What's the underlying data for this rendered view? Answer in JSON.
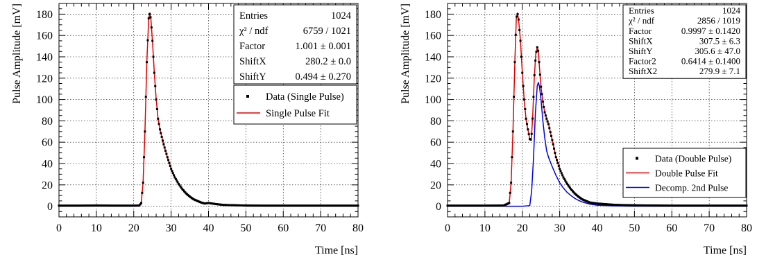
{
  "chart_data": [
    {
      "type": "line",
      "xlabel": "Time [ns]",
      "ylabel": "Pulse Amplitude [mV]",
      "xlim": [
        0,
        80
      ],
      "ylim": [
        -10,
        190
      ],
      "xticks": [
        0,
        10,
        20,
        30,
        40,
        50,
        60,
        70,
        80
      ],
      "yticks": [
        0,
        20,
        40,
        60,
        80,
        100,
        120,
        140,
        160,
        180
      ],
      "grid": true,
      "stats": [
        {
          "name": "Entries",
          "value": "1024"
        },
        {
          "name": "χ² / ndf",
          "value": "6759 / 1021"
        },
        {
          "name": "Factor",
          "value": "1.001 ± 0.001"
        },
        {
          "name": "ShiftX",
          "value": "280.2 ± 0.0"
        },
        {
          "name": "ShiftY",
          "value": "0.494 ± 0.270"
        }
      ],
      "legend": [
        {
          "label": "Data (Single Pulse)",
          "marker": "square",
          "color": "#000000"
        },
        {
          "label": "Single Pulse Fit",
          "marker": "line",
          "color": "#e00000"
        }
      ],
      "series": [
        {
          "name": "Single Pulse Fit",
          "color": "#e00000",
          "x": [
            0,
            5,
            10,
            15,
            20,
            21.5,
            22.0,
            22.5,
            23.0,
            23.5,
            24.0,
            24.3,
            24.6,
            25.0,
            25.5,
            26.0,
            26.5,
            27.0,
            28.0,
            29.0,
            30.0,
            31.0,
            32.0,
            33.0,
            34.0,
            35.0,
            36.0,
            37.0,
            38.0,
            39.0,
            40.0,
            41.0,
            42.0,
            44.0,
            46.0,
            50.0,
            55.0,
            60.0,
            70.0,
            80.0
          ],
          "y": [
            0.5,
            0.5,
            0.6,
            0.5,
            0.5,
            0.6,
            3,
            22,
            70,
            135,
            176,
            181,
            175,
            155,
            125,
            100,
            82,
            72,
            58,
            46,
            35,
            27,
            21,
            16,
            12,
            9,
            6.5,
            5,
            3.5,
            2.5,
            3,
            2.5,
            2,
            1.2,
            1,
            0.6,
            0.5,
            0.5,
            0.5,
            0.5
          ]
        }
      ]
    },
    {
      "type": "line",
      "xlabel": "Time [ns]",
      "ylabel": "Pulse Amplitude [mV]",
      "xlim": [
        0,
        80
      ],
      "ylim": [
        -10,
        190
      ],
      "xticks": [
        0,
        10,
        20,
        30,
        40,
        50,
        60,
        70,
        80
      ],
      "yticks": [
        0,
        20,
        40,
        60,
        80,
        100,
        120,
        140,
        160,
        180
      ],
      "grid": true,
      "stats": [
        {
          "name": "Entries",
          "value": "1024"
        },
        {
          "name": "χ² / ndf",
          "value": "2856 / 1019"
        },
        {
          "name": "Factor",
          "value": "0.9997 ± 0.1420"
        },
        {
          "name": "ShiftX",
          "value": "307.5 ± 6.3"
        },
        {
          "name": "ShiftY",
          "value": "305.6 ± 47.0"
        },
        {
          "name": "Factor2",
          "value": "0.6414 ± 0.1400"
        },
        {
          "name": "ShiftX2",
          "value": "279.9 ± 7.1"
        }
      ],
      "legend": [
        {
          "label": "Data (Double Pulse)",
          "marker": "square",
          "color": "#000000"
        },
        {
          "label": "Double Pulse Fit",
          "marker": "line",
          "color": "#e00000"
        },
        {
          "label": "Decomp. 2nd Pulse",
          "marker": "line",
          "color": "#0000e0"
        }
      ],
      "series": [
        {
          "name": "Double Pulse Fit",
          "color": "#e00000",
          "x": [
            0,
            5,
            10,
            15,
            16.5,
            17.0,
            17.5,
            18.0,
            18.4,
            18.7,
            19.0,
            19.5,
            20.0,
            20.5,
            21.0,
            21.5,
            22.0,
            22.4,
            22.8,
            23.2,
            23.6,
            24.0,
            24.3,
            24.6,
            25.0,
            25.5,
            26.0,
            26.5,
            27.0,
            28.0,
            29.0,
            30.0,
            31.0,
            32.0,
            33.0,
            34.0,
            35.0,
            36.0,
            38.0,
            40.0,
            42.0,
            45.0,
            50.0,
            60.0,
            70.0,
            80.0
          ],
          "y": [
            0.5,
            0.5,
            0.5,
            0.6,
            3,
            22,
            70,
            135,
            176,
            181,
            175,
            155,
            125,
            100,
            82,
            72,
            63,
            62,
            85,
            120,
            142,
            149,
            145,
            130,
            112,
            98,
            88,
            82,
            77,
            62,
            46,
            35,
            27,
            21,
            16,
            12,
            9,
            6.5,
            3.5,
            2.5,
            2,
            1.2,
            0.8,
            0.5,
            0.5,
            0.5
          ]
        },
        {
          "name": "Decomp. 2nd Pulse",
          "color": "#0000e0",
          "x": [
            0,
            10,
            20,
            22.0,
            22.5,
            23.0,
            23.5,
            24.0,
            24.3,
            24.6,
            25.0,
            25.5,
            26.0,
            26.5,
            27.0,
            28.0,
            29.0,
            30.0,
            31.0,
            32.0,
            33.0,
            34.0,
            35.0,
            36.0,
            38.0,
            40.0,
            44.0,
            50.0,
            60.0,
            80.0
          ],
          "y": [
            0,
            0,
            0,
            0.5,
            14,
            45,
            87,
            113,
            116,
            112,
            100,
            80,
            64,
            52,
            46,
            37,
            29,
            22,
            17,
            13,
            10,
            7.5,
            5.5,
            4,
            2,
            1,
            0.3,
            0,
            0,
            0
          ]
        }
      ]
    }
  ]
}
